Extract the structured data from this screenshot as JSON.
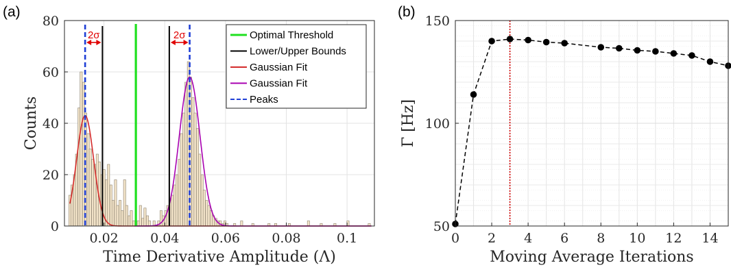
{
  "panels": {
    "a": {
      "label": "(a)"
    },
    "b": {
      "label": "(b)"
    }
  },
  "colors": {
    "histogram": "#f2e3c8",
    "histogram_edge": "#8c8270",
    "optimal_threshold": "#1fe01f",
    "bounds": "#000000",
    "gaussian_fit_1": "#d42a2a",
    "gaussian_fit_2": "#a800b0",
    "peaks": "#1f3fd6",
    "annotation": "#e00000",
    "iteration_marker": "#d40000"
  },
  "chart_data": [
    {
      "type": "bar",
      "panel": "a",
      "xlabel": "Time Derivative Amplitude (Λ)",
      "ylabel": "Counts",
      "xlim": [
        0.007,
        0.109
      ],
      "ylim": [
        0,
        80
      ],
      "xticks": [
        0.02,
        0.04,
        0.06,
        0.08,
        0.1
      ],
      "xtick_labels": [
        "0.02",
        "0.04",
        "0.06",
        "0.08",
        "0.1"
      ],
      "yticks": [
        0,
        20,
        40,
        60,
        80
      ],
      "ytick_labels": [
        "0",
        "20",
        "40",
        "60",
        "80"
      ],
      "grid": true,
      "legend_position": "top-right",
      "bin_width": 0.00075,
      "histogram": [
        [
          0.0088,
          12
        ],
        [
          0.0095,
          16
        ],
        [
          0.0103,
          20
        ],
        [
          0.011,
          28
        ],
        [
          0.0118,
          46
        ],
        [
          0.0125,
          60
        ],
        [
          0.0133,
          56
        ],
        [
          0.014,
          44
        ],
        [
          0.0148,
          36
        ],
        [
          0.0155,
          30
        ],
        [
          0.0163,
          26
        ],
        [
          0.017,
          24
        ],
        [
          0.0178,
          28
        ],
        [
          0.0185,
          25
        ],
        [
          0.0193,
          20
        ],
        [
          0.02,
          22
        ],
        [
          0.0208,
          18
        ],
        [
          0.0215,
          24
        ],
        [
          0.0223,
          16
        ],
        [
          0.023,
          10
        ],
        [
          0.0238,
          18
        ],
        [
          0.0245,
          8
        ],
        [
          0.0253,
          10
        ],
        [
          0.026,
          6
        ],
        [
          0.0268,
          18
        ],
        [
          0.0275,
          8
        ],
        [
          0.0283,
          4
        ],
        [
          0.029,
          6
        ],
        [
          0.0298,
          2
        ],
        [
          0.0305,
          0
        ],
        [
          0.0313,
          2
        ],
        [
          0.032,
          8
        ],
        [
          0.0328,
          3
        ],
        [
          0.0335,
          7
        ],
        [
          0.0343,
          4
        ],
        [
          0.035,
          2
        ],
        [
          0.0358,
          0
        ],
        [
          0.0365,
          2
        ],
        [
          0.0373,
          0
        ],
        [
          0.038,
          2
        ],
        [
          0.0388,
          6
        ],
        [
          0.0395,
          4
        ],
        [
          0.0403,
          6
        ],
        [
          0.041,
          8
        ],
        [
          0.0418,
          10
        ],
        [
          0.0425,
          12
        ],
        [
          0.0433,
          16
        ],
        [
          0.044,
          20
        ],
        [
          0.0448,
          26
        ],
        [
          0.0455,
          36
        ],
        [
          0.0463,
          44
        ],
        [
          0.047,
          56
        ],
        [
          0.0478,
          64
        ],
        [
          0.0485,
          58
        ],
        [
          0.0493,
          50
        ],
        [
          0.05,
          44
        ],
        [
          0.0508,
          38
        ],
        [
          0.0515,
          28
        ],
        [
          0.0523,
          20
        ],
        [
          0.053,
          14
        ],
        [
          0.0538,
          10
        ],
        [
          0.0545,
          8
        ],
        [
          0.0553,
          6
        ],
        [
          0.056,
          4
        ],
        [
          0.0568,
          3
        ],
        [
          0.0575,
          2
        ],
        [
          0.0583,
          2
        ],
        [
          0.059,
          1
        ],
        [
          0.0598,
          2
        ],
        [
          0.0605,
          1
        ],
        [
          0.063,
          1
        ],
        [
          0.0653,
          2
        ],
        [
          0.069,
          1
        ],
        [
          0.0743,
          1
        ],
        [
          0.0765,
          1
        ],
        [
          0.081,
          1
        ],
        [
          0.0873,
          2
        ],
        [
          0.0915,
          1
        ],
        [
          0.096,
          1
        ],
        [
          0.1003,
          2
        ],
        [
          0.1073,
          1
        ]
      ],
      "lines": [
        {
          "name": "Optimal Threshold",
          "x": 0.0305
        },
        {
          "name": "Lower/Upper Bounds",
          "x": [
            0.0195,
            0.0415
          ]
        }
      ],
      "gaussians": [
        {
          "name": "Gaussian Fit",
          "mean": 0.0138,
          "sigma": 0.0028,
          "amplitude": 43,
          "xmin": 0.0088,
          "xmax": 0.108
        },
        {
          "name": "Gaussian Fit",
          "mean": 0.0482,
          "sigma": 0.0034,
          "amplitude": 58,
          "xmin": 0.03,
          "xmax": 0.108
        }
      ],
      "peaks": {
        "name": "Peaks",
        "x": [
          0.0138,
          0.0482
        ]
      },
      "annotations": [
        {
          "text": "2σ",
          "from": 0.0138,
          "to": 0.0195,
          "y": 72
        },
        {
          "text": "2σ",
          "from": 0.0415,
          "to": 0.0482,
          "y": 72
        }
      ],
      "legend": [
        {
          "label": "Optimal Threshold",
          "style": "solid",
          "color_key": "optimal_threshold"
        },
        {
          "label": "Lower/Upper Bounds",
          "style": "solid",
          "color_key": "bounds"
        },
        {
          "label": "Gaussian Fit",
          "style": "solid",
          "color_key": "gaussian_fit_1"
        },
        {
          "label": "Gaussian Fit",
          "style": "solid",
          "color_key": "gaussian_fit_2"
        },
        {
          "label": "Peaks",
          "style": "dashed",
          "color_key": "peaks"
        }
      ]
    },
    {
      "type": "line",
      "panel": "b",
      "xlabel": "Moving Average Iterations",
      "ylabel": "Γ [Hz]",
      "xlim": [
        0,
        15
      ],
      "ylim": [
        50,
        150
      ],
      "xticks": [
        0,
        2,
        4,
        6,
        8,
        10,
        12,
        14
      ],
      "xtick_labels": [
        "0",
        "2",
        "4",
        "6",
        "8",
        "10",
        "12",
        "14"
      ],
      "yticks": [
        50,
        100,
        150
      ],
      "ytick_labels": [
        "50",
        "100",
        "150"
      ],
      "grid": true,
      "line_style": "dashed",
      "marker": "circle",
      "x": [
        0,
        1,
        2,
        3,
        4,
        5,
        6,
        8,
        9,
        10,
        11,
        12,
        13,
        14,
        15
      ],
      "y": [
        51,
        114,
        140,
        141,
        140.5,
        139.5,
        139,
        137,
        136.5,
        135.5,
        135,
        134,
        133,
        130,
        128
      ],
      "vline": {
        "x": 3
      }
    }
  ]
}
